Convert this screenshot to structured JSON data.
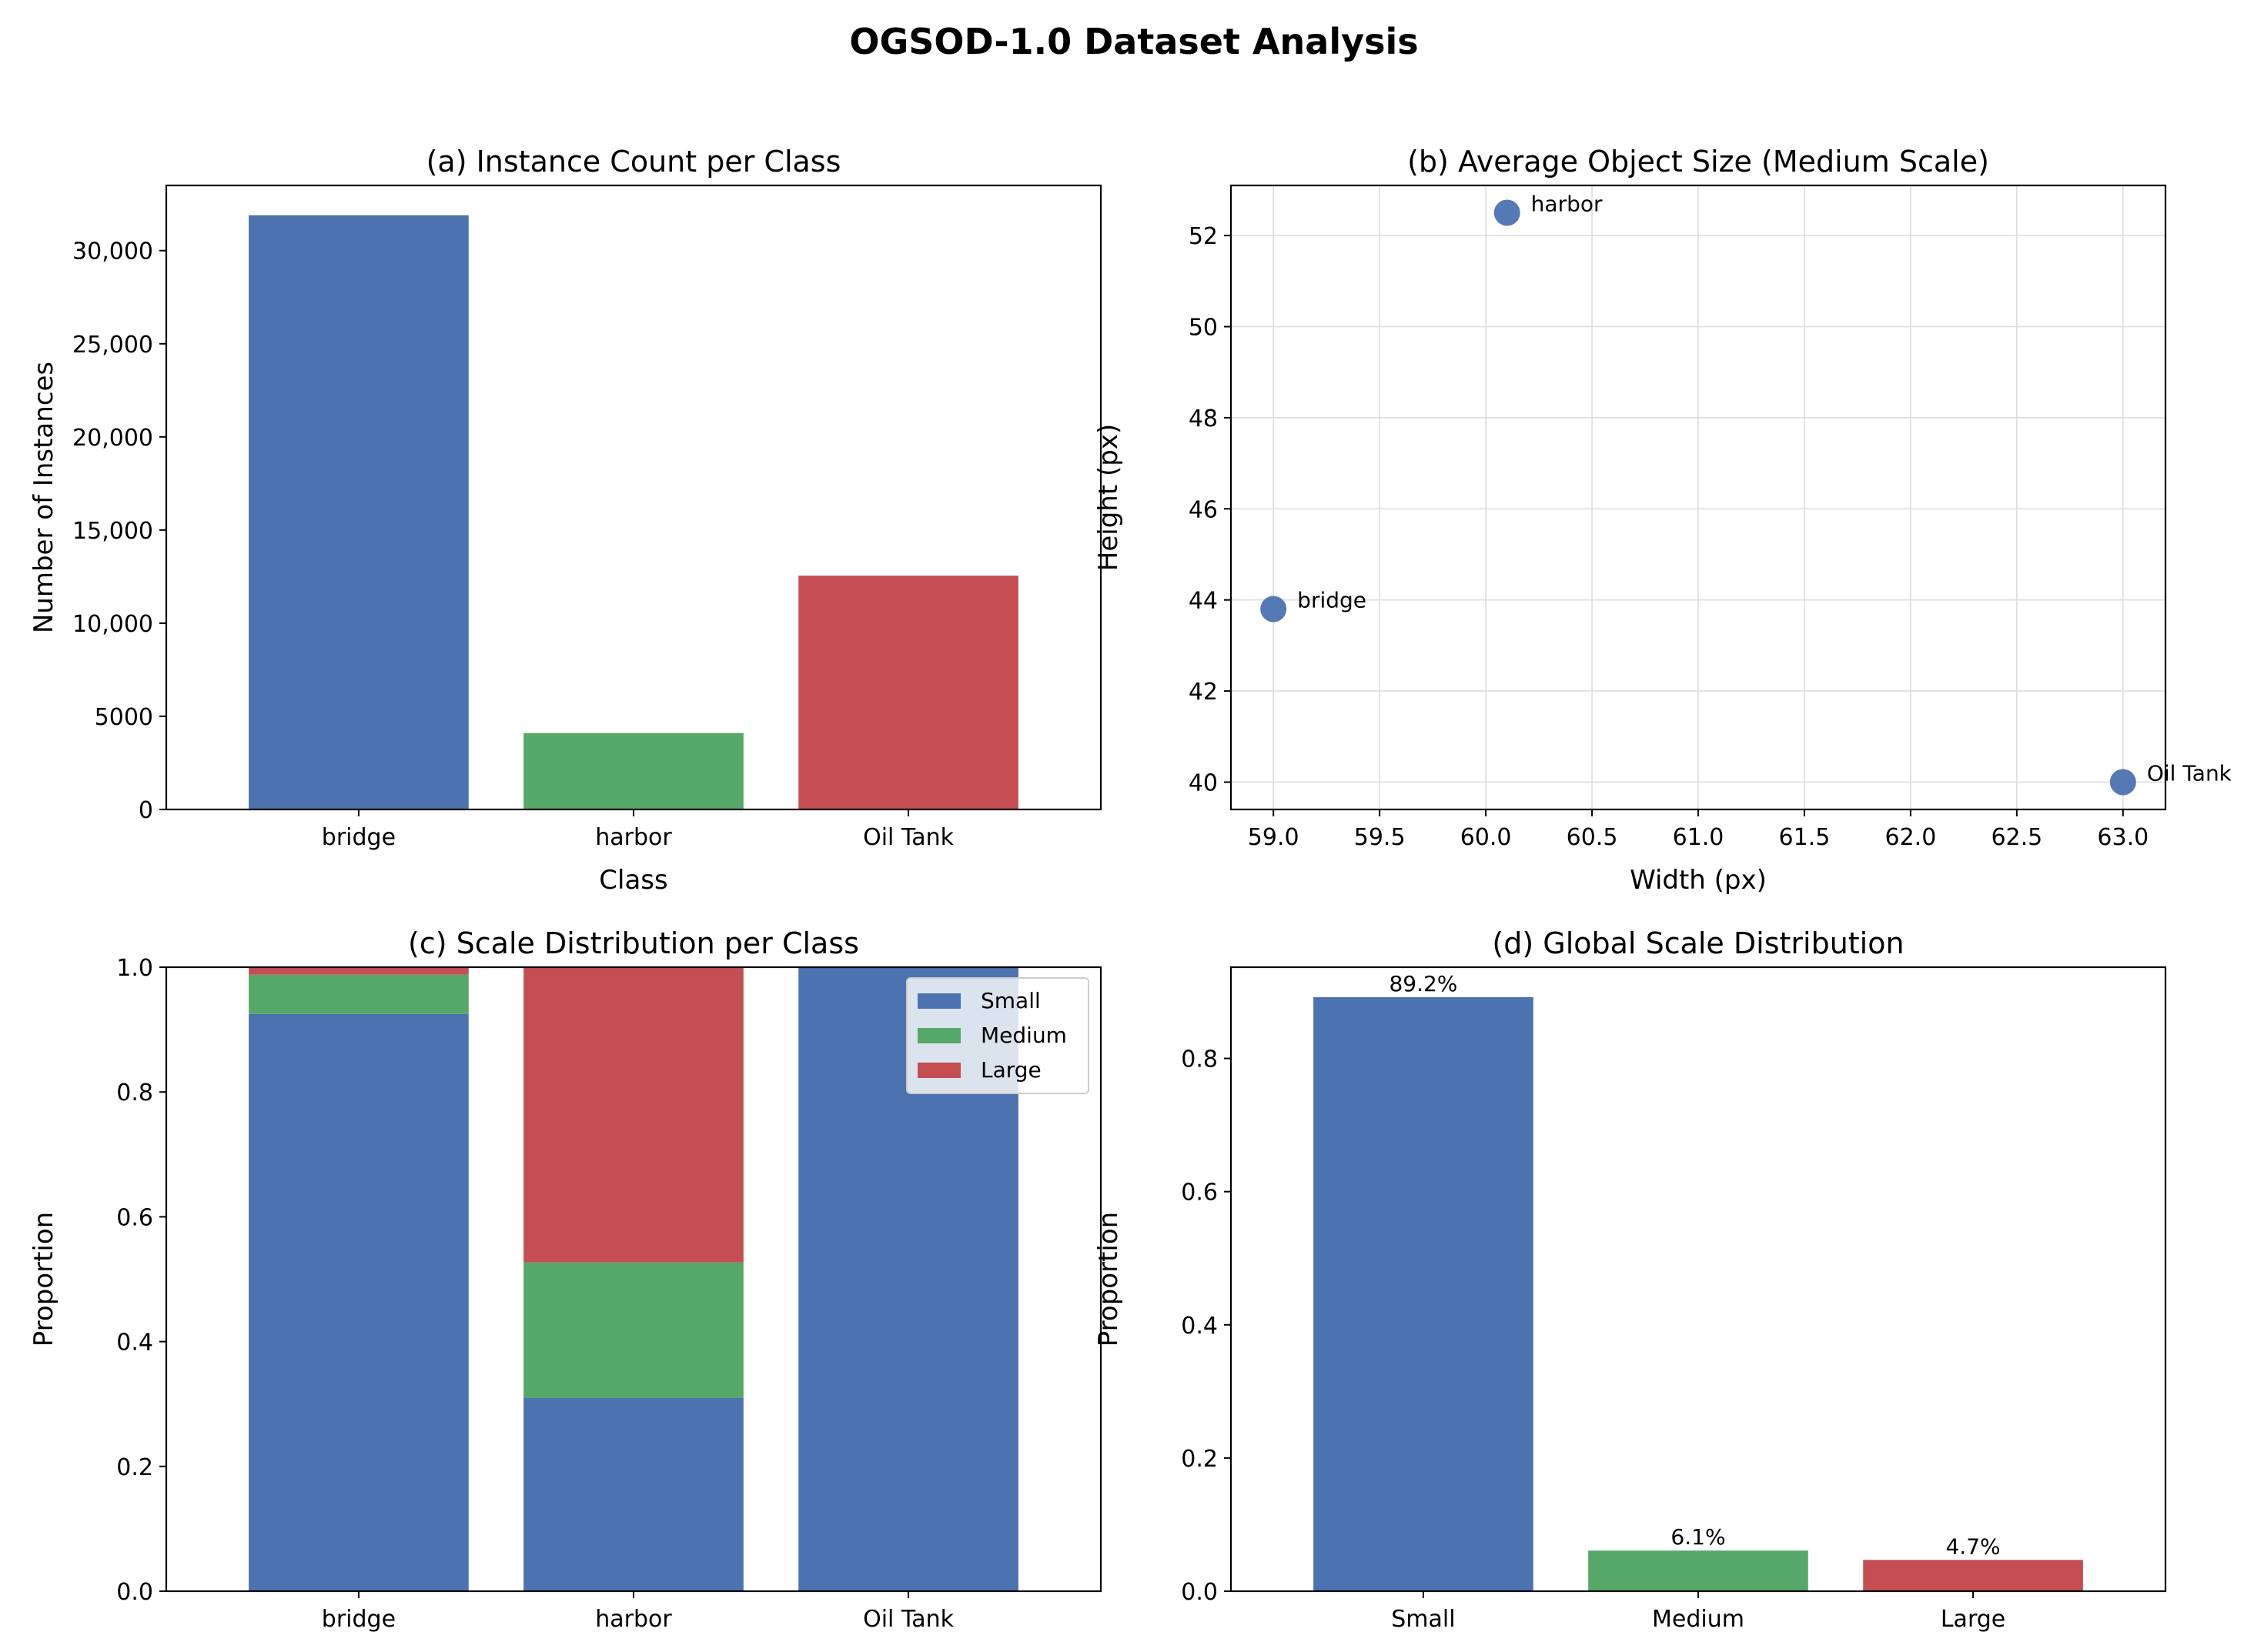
{
  "figure": {
    "title": "OGSOD-1.0 Dataset Analysis"
  },
  "colors": {
    "small": "#4c72b0",
    "medium": "#55a868",
    "large": "#c44e52",
    "grid": "#dddddd",
    "axis": "#000000"
  },
  "chart_data": [
    {
      "id": "a",
      "type": "bar",
      "title": "(a)  Instance Count per Class",
      "xlabel": "Class",
      "ylabel": "Number of Instances",
      "categories": [
        "bridge",
        "harbor",
        "Oil Tank"
      ],
      "values": [
        31900,
        4100,
        12550
      ],
      "ylim": [
        0,
        33500
      ],
      "yticks": [
        0,
        5000,
        10000,
        15000,
        20000,
        25000,
        30000
      ],
      "ytick_labels": [
        "0",
        "5000",
        "10,000",
        "15,000",
        "20,000",
        "25,000",
        "30,000"
      ],
      "grid": false
    },
    {
      "id": "b",
      "type": "scatter",
      "title": "(b)  Average Object Size (Medium Scale)",
      "xlabel": "Width (px)",
      "ylabel": "Height (px)",
      "points": [
        {
          "label": "bridge",
          "x": 59.0,
          "y": 43.8
        },
        {
          "label": "harbor",
          "x": 60.1,
          "y": 52.5
        },
        {
          "label": "Oil Tank",
          "x": 63.0,
          "y": 40.0
        }
      ],
      "xlim": [
        58.8,
        63.2
      ],
      "ylim": [
        39.4,
        53.1
      ],
      "xticks": [
        59.0,
        59.5,
        60.0,
        60.5,
        61.0,
        61.5,
        62.0,
        62.5,
        63.0
      ],
      "xtick_labels": [
        "59.0",
        "59.5",
        "60.0",
        "60.5",
        "61.0",
        "61.5",
        "62.0",
        "62.5",
        "63.0"
      ],
      "yticks": [
        40,
        42,
        44,
        46,
        48,
        50,
        52
      ],
      "ytick_labels": [
        "40",
        "42",
        "44",
        "46",
        "48",
        "50",
        "52"
      ],
      "grid": true
    },
    {
      "id": "c",
      "type": "bar",
      "stacked": true,
      "title": "(c)  Scale Distribution per Class",
      "xlabel": "",
      "ylabel": "Proportion",
      "categories": [
        "bridge",
        "harbor",
        "Oil Tank"
      ],
      "series": [
        {
          "name": "Small",
          "values": [
            0.925,
            0.31,
            1.0
          ]
        },
        {
          "name": "Medium",
          "values": [
            0.063,
            0.217,
            0.0
          ]
        },
        {
          "name": "Large",
          "values": [
            0.012,
            0.473,
            0.0
          ]
        }
      ],
      "ylim": [
        0,
        1.0
      ],
      "yticks": [
        0,
        0.2,
        0.4,
        0.6,
        0.8,
        1.0
      ],
      "ytick_labels": [
        "0.0",
        "0.2",
        "0.4",
        "0.6",
        "0.8",
        "1.0"
      ],
      "legend": "top-right",
      "grid": false
    },
    {
      "id": "d",
      "type": "bar",
      "title": "(d)  Global Scale Distribution",
      "xlabel": "",
      "ylabel": "Proportion",
      "categories": [
        "Small",
        "Medium",
        "Large"
      ],
      "values": [
        0.892,
        0.061,
        0.047
      ],
      "data_labels": [
        "89.2%",
        "6.1%",
        "4.7%"
      ],
      "ylim": [
        0,
        0.937
      ],
      "yticks": [
        0,
        0.2,
        0.4,
        0.6,
        0.8
      ],
      "ytick_labels": [
        "0.0",
        "0.2",
        "0.4",
        "0.6",
        "0.8"
      ],
      "grid": false
    }
  ]
}
